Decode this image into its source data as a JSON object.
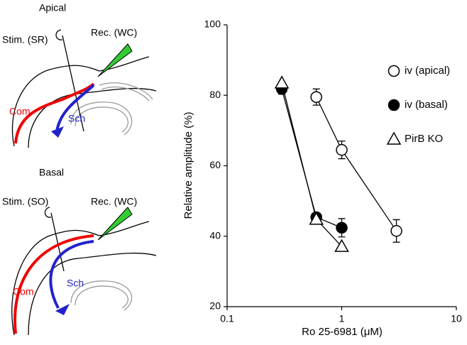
{
  "diagram": {
    "panels": [
      {
        "title": "Apical",
        "stim": "Stim. (SR)",
        "rec": "Rec. (WC)",
        "com": "Com",
        "sch": "Sch"
      },
      {
        "title": "Basal",
        "stim": "Stim. (SO)",
        "rec": "Rec. (WC)",
        "com": "Com",
        "sch": "Sch"
      }
    ]
  },
  "chart_data": {
    "type": "line",
    "xlabel": "Ro 25-6981 (μM)",
    "ylabel": "Relative amplitude (%)",
    "xscale": "log",
    "xlim": [
      0.1,
      10
    ],
    "xticks": [
      0.1,
      1,
      10
    ],
    "ylim": [
      20,
      100
    ],
    "yticks": [
      20,
      40,
      60,
      80,
      100
    ],
    "legend": "upper right",
    "series": [
      {
        "name": "iv (apical)",
        "color": "#000000",
        "marker": "circle",
        "facecolor": "#ffffff",
        "x": [
          0.6,
          1,
          3
        ],
        "values": [
          79.5,
          64.5,
          41.5
        ],
        "errors": [
          2.3,
          2.5,
          3.2
        ]
      },
      {
        "name": "iv (basal)",
        "color": "#000000",
        "marker": "circle",
        "facecolor": "#000000",
        "x": [
          0.3,
          0.6,
          1
        ],
        "values": [
          81.8,
          45.4,
          42.4
        ],
        "errors": [
          1.5,
          1,
          2.6
        ]
      },
      {
        "name": "PirB KO",
        "color": "#000000",
        "marker": "triangle",
        "facecolor": "#ffffff",
        "x": [
          0.3,
          0.6,
          1
        ],
        "values": [
          83.5,
          44.8,
          37.1
        ]
      }
    ]
  }
}
